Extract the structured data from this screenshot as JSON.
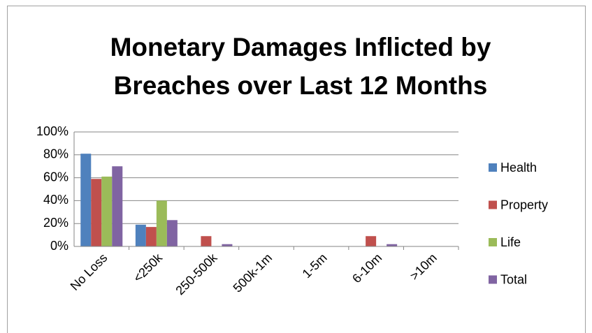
{
  "chart_data": {
    "type": "bar",
    "title": "Monetary Damages Inflicted by Breaches over Last 12 Months",
    "categories": [
      "No Loss",
      "<250k",
      "250-500k",
      "500k-1m",
      "1-5m",
      "6-10m",
      ">10m"
    ],
    "series": [
      {
        "name": "Health",
        "color": "#4f81bd",
        "values": [
          81,
          19,
          0,
          0,
          0,
          0,
          0
        ]
      },
      {
        "name": "Property",
        "color": "#c0504d",
        "values": [
          59,
          17,
          9,
          0,
          0,
          9,
          0
        ]
      },
      {
        "name": "Life",
        "color": "#9bbb59",
        "values": [
          61,
          40,
          0,
          0,
          0,
          0,
          0
        ]
      },
      {
        "name": "Total",
        "color": "#8064a2",
        "values": [
          70,
          23,
          2,
          0,
          0,
          2,
          0
        ]
      }
    ],
    "ylim": [
      0,
      100
    ],
    "yticks": [
      {
        "value": 0,
        "label": "0%"
      },
      {
        "value": 20,
        "label": "20%"
      },
      {
        "value": 40,
        "label": "40%"
      },
      {
        "value": 60,
        "label": "60%"
      },
      {
        "value": 80,
        "label": "80%"
      },
      {
        "value": 100,
        "label": "100%"
      }
    ],
    "grid": true,
    "legend": "right"
  }
}
